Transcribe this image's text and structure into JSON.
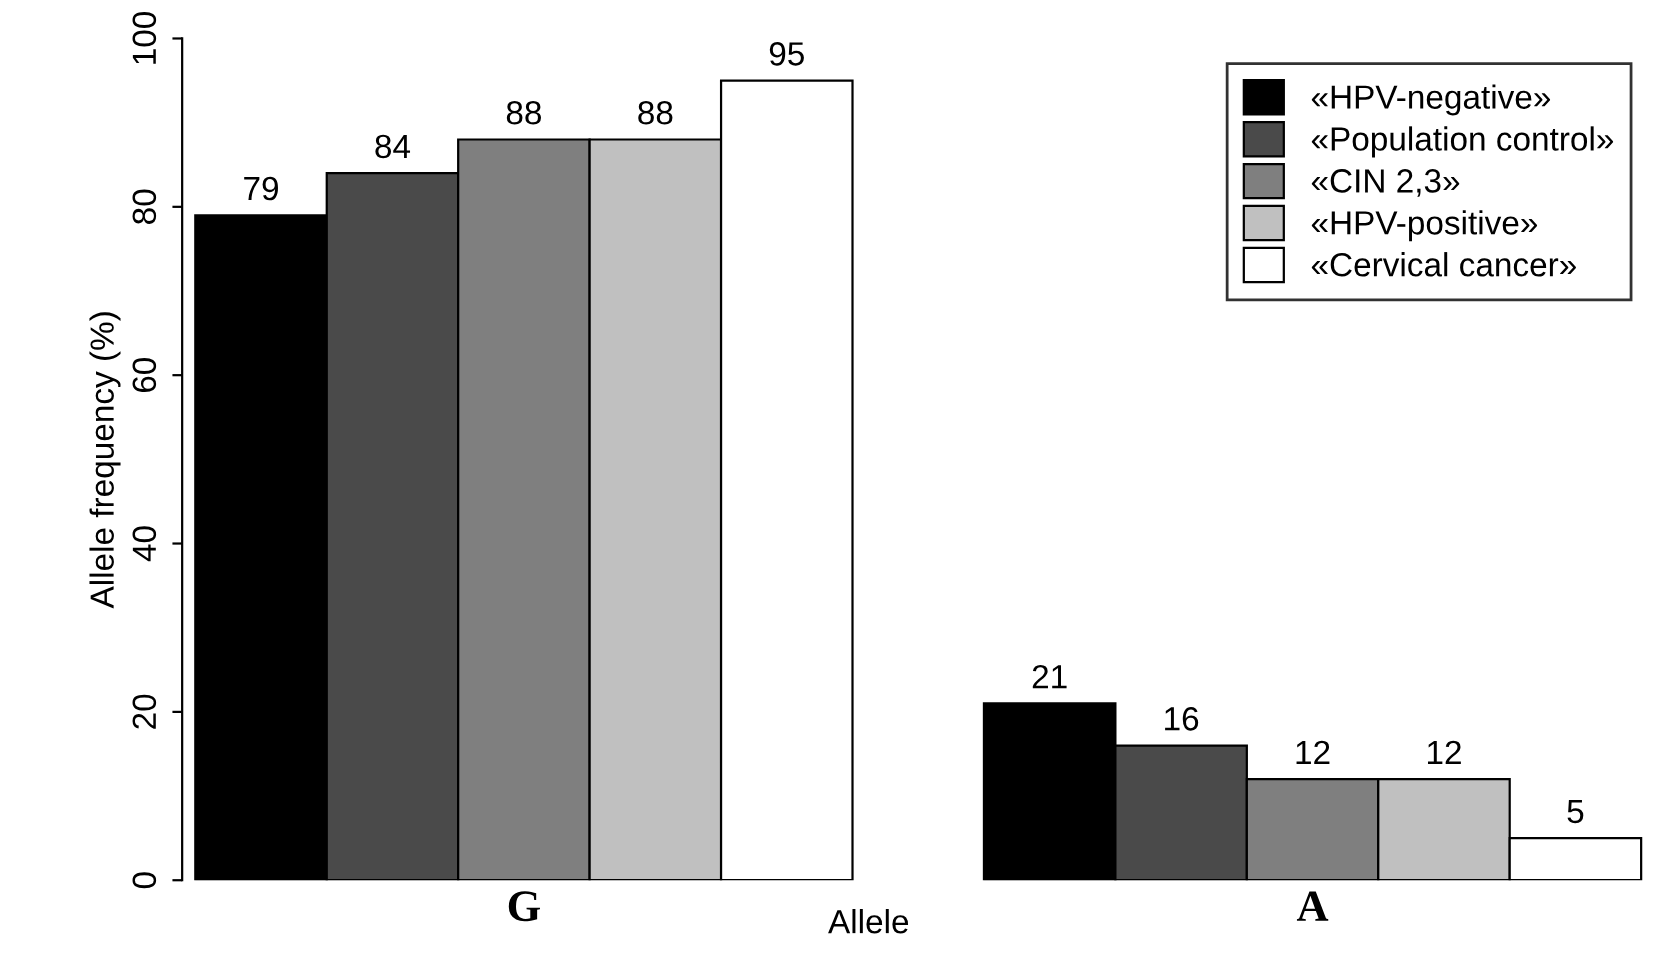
{
  "chart_data": {
    "type": "bar",
    "categories": [
      "G",
      "A"
    ],
    "series": [
      {
        "name": "«HPV-negative»",
        "color": "#000000",
        "values": [
          79,
          21
        ]
      },
      {
        "name": "«Population control»",
        "color": "#4a4a4a",
        "values": [
          84,
          16
        ]
      },
      {
        "name": "«CIN 2,3»",
        "color": "#7f7f7f",
        "values": [
          88,
          12
        ]
      },
      {
        "name": "«HPV-positive»",
        "color": "#c0c0c0",
        "values": [
          88,
          12
        ]
      },
      {
        "name": "«Cervical cancer»",
        "color": "#ffffff",
        "values": [
          95,
          5
        ]
      }
    ],
    "xlabel": "Allele",
    "ylabel": "Allele frequency (%)",
    "ylim": [
      0,
      100
    ],
    "yticks": [
      0,
      20,
      40,
      60,
      80,
      100
    ],
    "data_labels": true,
    "legend": "top right",
    "grid": false
  }
}
